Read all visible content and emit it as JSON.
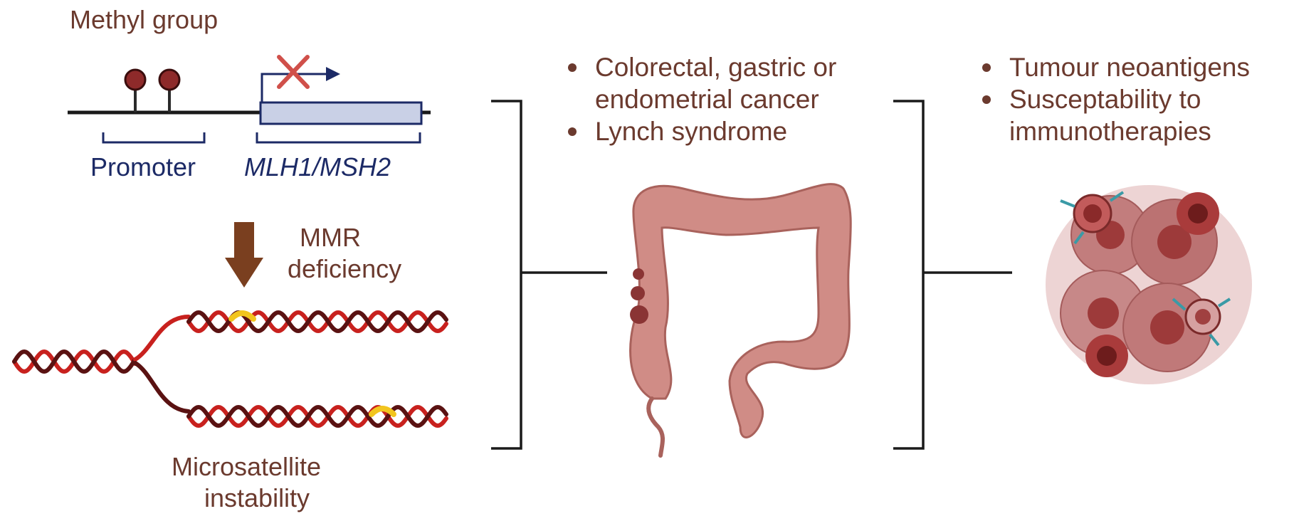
{
  "labels": {
    "methyl_group": "Methyl group",
    "promoter": "Promoter",
    "gene": "MLH1/MSH2",
    "mmr_deficiency_line1": "MMR",
    "mmr_deficiency_line2": "deficiency",
    "msi_line1": "Microsatellite",
    "msi_line2": "instability"
  },
  "middle_list": [
    {
      "lines": [
        "Colorectal, gastric or",
        "endometrial cancer"
      ]
    },
    {
      "lines": [
        "Lynch syndrome"
      ]
    }
  ],
  "right_list": [
    {
      "lines": [
        "Tumour neoantigens"
      ]
    },
    {
      "lines": [
        "Susceptability to",
        "immunotherapies"
      ]
    }
  ],
  "colors": {
    "text_brown": "#6b3a2e",
    "text_navy": "#1c2a66",
    "arrow_brown": "#7a3f1f",
    "methyl_red": "#8e2a2a",
    "cross_red": "#d0504a",
    "gene_box_fill": "#c9d0e6",
    "dna_red": "#c8211e",
    "dna_dark": "#5a1212",
    "mutation_yellow": "#f2c51e",
    "colon_pink": "#d08c86",
    "tumor_pink": "#c27d7d"
  }
}
